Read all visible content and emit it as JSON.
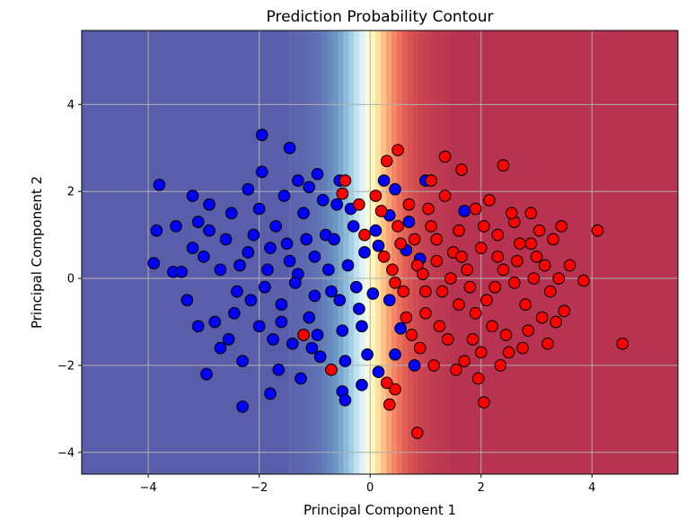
{
  "chart_data": {
    "type": "scatter",
    "title": "Prediction Probability Contour",
    "xlabel": "Principal Component 1",
    "ylabel": "Principal Component 2",
    "xlim": [
      -5.2,
      5.55
    ],
    "ylim": [
      -4.5,
      5.7
    ],
    "xticks": [
      -4,
      -2,
      0,
      2,
      4
    ],
    "yticks": [
      -4,
      -2,
      0,
      2,
      4
    ],
    "xtick_labels": [
      "−4",
      "−2",
      "0",
      "2",
      "4"
    ],
    "ytick_labels": [
      "−4",
      "−2",
      "0",
      "2",
      "4"
    ],
    "grid": true,
    "contour": {
      "colormap": "RdYlBu_r",
      "boundary_x": 0.0,
      "transition_width": 1.45,
      "levels": 30
    },
    "colors": {
      "class0": "#0000ff",
      "class1": "#ff0000",
      "edge": "#000000",
      "grid": "#b0b0b0"
    },
    "series": [
      {
        "color": "#0000ff",
        "points": [
          [
            -3.9,
            0.35
          ],
          [
            -3.8,
            2.15
          ],
          [
            -3.85,
            1.1
          ],
          [
            -3.55,
            0.15
          ],
          [
            -3.4,
            0.15
          ],
          [
            -3.2,
            1.9
          ],
          [
            -3.1,
            1.3
          ],
          [
            -2.9,
            1.7
          ],
          [
            -2.95,
            -2.2
          ],
          [
            -2.7,
            -1.6
          ],
          [
            -2.3,
            -2.95
          ],
          [
            -2.2,
            2.05
          ],
          [
            -1.95,
            3.3
          ],
          [
            -1.95,
            2.45
          ],
          [
            -1.8,
            -2.65
          ],
          [
            -1.45,
            3.0
          ],
          [
            -1.3,
            2.25
          ],
          [
            -1.1,
            2.1
          ],
          [
            -0.95,
            2.4
          ],
          [
            -0.55,
            2.25
          ],
          [
            -0.5,
            -2.6
          ],
          [
            -0.45,
            -2.8
          ],
          [
            -0.15,
            -2.45
          ],
          [
            -0.05,
            -1.75
          ],
          [
            0.15,
            -2.15
          ],
          [
            0.45,
            -1.75
          ],
          [
            0.55,
            -1.15
          ],
          [
            0.35,
            -0.5
          ],
          [
            0.15,
            0.75
          ],
          [
            0.1,
            1.1
          ],
          [
            0.35,
            1.45
          ],
          [
            0.25,
            2.25
          ],
          [
            0.45,
            2.05
          ],
          [
            0.65,
            0.65
          ],
          [
            0.7,
            1.3
          ],
          [
            0.9,
            0.45
          ],
          [
            0.8,
            -2.0
          ],
          [
            1.0,
            2.25
          ],
          [
            1.7,
            1.55
          ],
          [
            -2.6,
            0.9
          ],
          [
            -2.4,
            -0.3
          ],
          [
            -2.2,
            0.6
          ],
          [
            -2.0,
            -1.1
          ],
          [
            -1.85,
            0.2
          ],
          [
            -1.7,
            1.2
          ],
          [
            -1.6,
            -0.6
          ],
          [
            -1.5,
            0.8
          ],
          [
            -1.4,
            -1.5
          ],
          [
            -1.3,
            0.1
          ],
          [
            -1.2,
            1.5
          ],
          [
            -1.1,
            -0.9
          ],
          [
            -1.0,
            0.5
          ],
          [
            -0.9,
            -1.8
          ],
          [
            -0.8,
            1.0
          ],
          [
            -0.7,
            -0.3
          ],
          [
            -0.6,
            1.7
          ],
          [
            -0.5,
            -1.2
          ],
          [
            -0.4,
            0.3
          ],
          [
            -0.3,
            1.2
          ],
          [
            -0.2,
            -0.7
          ],
          [
            -0.1,
            0.6
          ],
          [
            -3.3,
            -0.5
          ],
          [
            -3.0,
            0.5
          ],
          [
            -2.8,
            -1.0
          ],
          [
            -2.5,
            1.5
          ],
          [
            -2.3,
            -1.9
          ],
          [
            -2.1,
            1.0
          ],
          [
            -1.9,
            -0.2
          ],
          [
            -1.75,
            -1.4
          ],
          [
            -1.55,
            1.9
          ],
          [
            -1.35,
            -0.1
          ],
          [
            -1.15,
            0.9
          ],
          [
            -0.95,
            -1.3
          ],
          [
            -0.75,
            0.2
          ],
          [
            -0.55,
            -0.5
          ],
          [
            -0.35,
            1.6
          ],
          [
            -0.15,
            -1.1
          ],
          [
            -2.7,
            0.2
          ],
          [
            -2.45,
            -0.8
          ],
          [
            -1.65,
            -2.1
          ],
          [
            -1.25,
            -2.3
          ],
          [
            -0.85,
            1.8
          ],
          [
            -3.1,
            -1.1
          ],
          [
            -2.15,
            -0.5
          ],
          [
            -1.05,
            -1.6
          ],
          [
            -0.65,
            0.9
          ],
          [
            -0.25,
            -0.2
          ],
          [
            -3.5,
            1.2
          ],
          [
            -2.9,
            1.1
          ],
          [
            -2.0,
            1.6
          ],
          [
            -1.45,
            0.4
          ],
          [
            -0.45,
            -1.9
          ],
          [
            0.05,
            -0.35
          ],
          [
            -2.55,
            -1.4
          ],
          [
            -1.8,
            0.7
          ],
          [
            -1.0,
            -0.4
          ],
          [
            -3.2,
            0.7
          ],
          [
            -2.35,
            0.3
          ],
          [
            -1.6,
            -1.0
          ]
        ]
      },
      {
        "color": "#ff0000",
        "points": [
          [
            0.5,
            2.95
          ],
          [
            0.3,
            2.7
          ],
          [
            1.35,
            2.8
          ],
          [
            1.65,
            2.5
          ],
          [
            2.4,
            2.6
          ],
          [
            1.1,
            2.25
          ],
          [
            4.1,
            1.1
          ],
          [
            4.55,
            -1.5
          ],
          [
            3.85,
            -0.05
          ],
          [
            3.5,
            -0.75
          ],
          [
            0.85,
            -3.55
          ],
          [
            2.05,
            -2.85
          ],
          [
            0.45,
            -2.55
          ],
          [
            0.35,
            -2.9
          ],
          [
            0.3,
            -2.4
          ],
          [
            -0.7,
            -2.1
          ],
          [
            -1.2,
            -1.3
          ],
          [
            -0.5,
            1.95
          ],
          [
            -0.45,
            2.25
          ],
          [
            -0.2,
            1.7
          ],
          [
            -0.1,
            1.0
          ],
          [
            0.1,
            1.9
          ],
          [
            0.2,
            1.55
          ],
          [
            0.4,
            0.2
          ],
          [
            0.6,
            -0.3
          ],
          [
            0.8,
            0.9
          ],
          [
            1.0,
            -0.8
          ],
          [
            1.2,
            0.4
          ],
          [
            1.4,
            -1.4
          ],
          [
            1.6,
            1.1
          ],
          [
            1.8,
            -0.2
          ],
          [
            2.0,
            0.7
          ],
          [
            2.2,
            -1.1
          ],
          [
            2.4,
            0.2
          ],
          [
            2.6,
            1.3
          ],
          [
            2.8,
            -0.6
          ],
          [
            3.0,
            0.5
          ],
          [
            3.2,
            -1.5
          ],
          [
            3.4,
            0.0
          ],
          [
            0.7,
            1.7
          ],
          [
            0.9,
            -1.6
          ],
          [
            1.1,
            1.2
          ],
          [
            1.3,
            -0.3
          ],
          [
            1.5,
            0.6
          ],
          [
            1.7,
            -1.9
          ],
          [
            1.9,
            1.6
          ],
          [
            2.1,
            -0.5
          ],
          [
            2.3,
            1.0
          ],
          [
            2.5,
            -1.7
          ],
          [
            2.7,
            0.8
          ],
          [
            2.9,
            1.5
          ],
          [
            3.1,
            -0.9
          ],
          [
            3.3,
            0.9
          ],
          [
            3.6,
            0.3
          ],
          [
            0.5,
            1.2
          ],
          [
            0.65,
            -0.9
          ],
          [
            0.85,
            0.3
          ],
          [
            1.05,
            1.6
          ],
          [
            1.25,
            -1.1
          ],
          [
            1.45,
            0.0
          ],
          [
            1.65,
            0.5
          ],
          [
            1.85,
            -1.4
          ],
          [
            2.05,
            1.2
          ],
          [
            2.25,
            -0.2
          ],
          [
            2.45,
            -1.3
          ],
          [
            2.65,
            0.4
          ],
          [
            2.85,
            -1.2
          ],
          [
            3.05,
            1.1
          ],
          [
            3.25,
            -0.3
          ],
          [
            3.45,
            1.2
          ],
          [
            1.15,
            -2.0
          ],
          [
            1.55,
            -2.1
          ],
          [
            1.95,
            -2.3
          ],
          [
            2.35,
            -2.0
          ],
          [
            2.75,
            -1.6
          ],
          [
            1.35,
            1.9
          ],
          [
            2.15,
            1.8
          ],
          [
            2.55,
            1.5
          ],
          [
            0.25,
            0.5
          ],
          [
            0.45,
            -0.1
          ],
          [
            0.95,
            0.1
          ],
          [
            1.75,
            0.2
          ],
          [
            2.95,
            0.0
          ],
          [
            3.15,
            0.3
          ],
          [
            0.75,
            -1.3
          ],
          [
            1.9,
            -0.8
          ],
          [
            2.6,
            -0.1
          ],
          [
            1.2,
            0.9
          ],
          [
            2.0,
            -1.7
          ],
          [
            3.35,
            -1.0
          ],
          [
            0.55,
            0.8
          ],
          [
            1.0,
            -0.3
          ],
          [
            1.6,
            -0.6
          ],
          [
            2.3,
            0.5
          ],
          [
            2.9,
            0.8
          ]
        ]
      }
    ]
  }
}
